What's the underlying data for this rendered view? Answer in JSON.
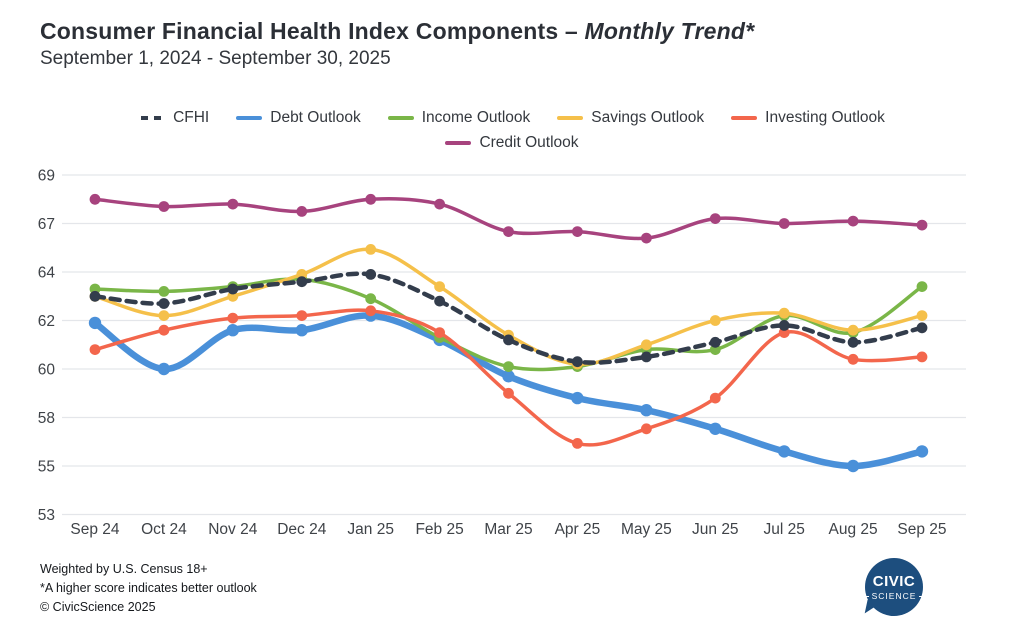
{
  "header": {
    "title_main": "Consumer Financial Health Index Components ",
    "title_dash": "– ",
    "title_italic": "Monthly Trend*",
    "subtitle": "September 1, 2024 - September 30, 2025"
  },
  "footer": {
    "line1": "Weighted by U.S. Census 18+",
    "line2": "*A higher score indicates better outlook",
    "line3": "© CivicScience 2025"
  },
  "logo": {
    "line1": "CIVIC",
    "line2": "SCIENCE",
    "bg_color": "#1d4e7e"
  },
  "chart_data": {
    "type": "line",
    "title": "Consumer Financial Health Index Components – Monthly Trend*",
    "subtitle": "September 1, 2024 - September 30, 2025",
    "xlabel": "",
    "ylabel": "",
    "grid": true,
    "legend_position": "top-center",
    "y_ticks": [
      69,
      67,
      64,
      62,
      60,
      58,
      55,
      53
    ],
    "ylim": [
      53,
      69
    ],
    "categories": [
      "Sep 24",
      "Oct 24",
      "Nov 24",
      "Dec 24",
      "Jan 25",
      "Feb 25",
      "Mar 25",
      "Apr 25",
      "May 25",
      "Jun 25",
      "Jul 25",
      "Aug 25",
      "Sep 25"
    ],
    "series": [
      {
        "name": "CFHI",
        "color": "#333d4c",
        "dashed": true,
        "line_width": 4.5,
        "values": [
          63.0,
          62.7,
          63.3,
          63.6,
          63.9,
          62.8,
          61.2,
          60.3,
          60.5,
          61.1,
          61.8,
          61.1,
          61.7
        ]
      },
      {
        "name": "Debt Outlook",
        "color": "#4a90d9",
        "dashed": false,
        "line_width": 6.5,
        "values": [
          61.9,
          60.0,
          61.6,
          61.6,
          62.2,
          61.2,
          59.7,
          58.8,
          58.3,
          57.3,
          55.9,
          55.0,
          55.9
        ]
      },
      {
        "name": "Income Outlook",
        "color": "#7ab648",
        "dashed": false,
        "line_width": 3.5,
        "values": [
          63.3,
          63.2,
          63.4,
          63.7,
          62.9,
          61.3,
          60.1,
          60.1,
          60.8,
          60.8,
          62.2,
          61.5,
          63.4
        ]
      },
      {
        "name": "Savings Outlook",
        "color": "#f5c04a",
        "dashed": false,
        "line_width": 3.5,
        "values": [
          63.0,
          62.2,
          63.0,
          63.9,
          65.4,
          63.4,
          61.4,
          60.2,
          61.0,
          62.0,
          62.3,
          61.6,
          62.2
        ]
      },
      {
        "name": "Investing Outlook",
        "color": "#f3664c",
        "dashed": false,
        "line_width": 3.5,
        "values": [
          60.8,
          61.6,
          62.1,
          62.2,
          62.4,
          61.5,
          59.0,
          56.4,
          57.3,
          58.8,
          61.5,
          60.4,
          60.5
        ]
      },
      {
        "name": "Credit Outlook",
        "color": "#a7437e",
        "dashed": false,
        "line_width": 3.5,
        "values": [
          68.0,
          67.7,
          67.8,
          67.5,
          68.0,
          67.8,
          66.5,
          66.5,
          66.1,
          67.2,
          67.0,
          67.1,
          66.9
        ]
      }
    ],
    "legend_rows": [
      [
        0,
        1,
        2,
        3,
        4
      ],
      [
        5
      ]
    ]
  }
}
